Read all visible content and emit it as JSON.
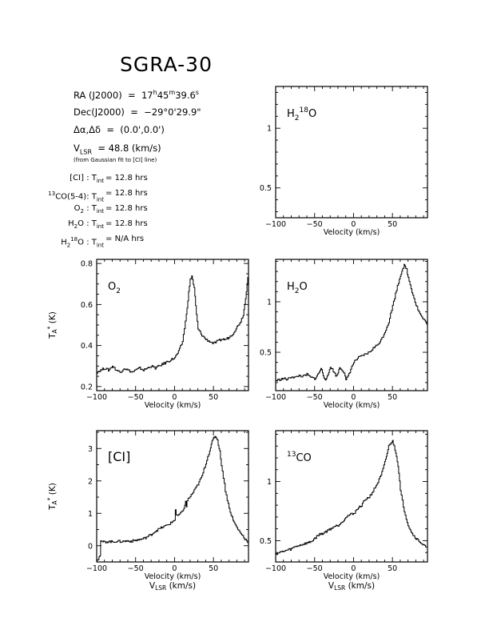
{
  "header": {
    "title": "SGRA-30",
    "ra_label": "RA (J2000)",
    "ra_h": "17",
    "ra_m": "45",
    "ra_s": "39.6",
    "dec_label": "Dec(J2000)",
    "dec_value": "−29°0'29.9\"",
    "offset_label": "Δα,Δδ",
    "offset_value": "(0.0',0.0')",
    "vlsr_label": "LSR",
    "vlsr_value": "= 48.8 (km/s)",
    "vlsr_note": "(from Gaussian fit to [CI] line)"
  },
  "integration": {
    "value_prefix": "= ",
    "rows": [
      {
        "line": "[CI]",
        "hours": "12.8 hrs"
      },
      {
        "line": "13CO(5-4)",
        "hours": "12.8 hrs"
      },
      {
        "line": "O2",
        "hours": "12.8 hrs"
      },
      {
        "line": "H2O",
        "hours": "12.8 hrs"
      },
      {
        "line": "H2 18O",
        "hours": "N/A hrs"
      }
    ]
  },
  "axis_text": {
    "velocity_label": "Velocity (km/s)",
    "vlsr_axis_label": "V",
    "vlsr_axis_sub": "LSR",
    "vlsr_axis_unit": "(km/s)",
    "ta_label": "T",
    "ta_unit": "(K)"
  },
  "chart_data": [
    {
      "type": "line",
      "panel": "H2 18O",
      "title": "H2 18O",
      "xlabel": "Velocity (km/s)",
      "xlim": [
        -100,
        95
      ],
      "ylim": [
        0.25,
        1.35
      ],
      "xticks": [
        -100,
        -50,
        0,
        50
      ],
      "yticks": [
        0.5,
        1
      ],
      "series": []
    },
    {
      "type": "line",
      "panel": "O2",
      "title": "O2",
      "xlabel": "Velocity (km/s)",
      "ylabel": "TA* (K)",
      "xlim": [
        -100,
        95
      ],
      "ylim": [
        0.18,
        0.82
      ],
      "xticks": [
        -100,
        -50,
        0,
        50
      ],
      "yticks": [
        0.2,
        0.4,
        0.6,
        0.8
      ],
      "series": [
        {
          "x": [
            -100,
            -95,
            -90,
            -85,
            -80,
            -75,
            -70,
            -65,
            -60,
            -55,
            -50,
            -45,
            -40,
            -35,
            -30,
            -25,
            -20,
            -15,
            -10,
            -5,
            0,
            5,
            10,
            15,
            18,
            20,
            22,
            25,
            28,
            30,
            35,
            40,
            45,
            50,
            55,
            60,
            65,
            70,
            75,
            80,
            85,
            88,
            90,
            93,
            95
          ],
          "y": [
            0.27,
            0.28,
            0.29,
            0.28,
            0.3,
            0.28,
            0.27,
            0.29,
            0.28,
            0.27,
            0.28,
            0.29,
            0.28,
            0.29,
            0.3,
            0.29,
            0.3,
            0.31,
            0.32,
            0.33,
            0.34,
            0.37,
            0.42,
            0.55,
            0.66,
            0.72,
            0.74,
            0.68,
            0.55,
            0.48,
            0.45,
            0.43,
            0.42,
            0.41,
            0.42,
            0.43,
            0.43,
            0.44,
            0.46,
            0.49,
            0.52,
            0.55,
            0.6,
            0.7,
            0.77
          ]
        }
      ]
    },
    {
      "type": "line",
      "panel": "H2O",
      "title": "H2O",
      "xlabel": "Velocity (km/s)",
      "xlim": [
        -100,
        95
      ],
      "ylim": [
        0.12,
        1.42
      ],
      "xticks": [
        -100,
        -50,
        0,
        50
      ],
      "yticks": [
        0.5,
        1
      ],
      "series": [
        {
          "x": [
            -100,
            -95,
            -90,
            -85,
            -80,
            -75,
            -70,
            -65,
            -60,
            -55,
            -50,
            -45,
            -42,
            -40,
            -38,
            -35,
            -32,
            -30,
            -25,
            -22,
            -20,
            -18,
            -15,
            -12,
            -10,
            -5,
            0,
            5,
            10,
            15,
            20,
            25,
            30,
            35,
            40,
            45,
            50,
            55,
            60,
            63,
            65,
            68,
            70,
            75,
            80,
            85,
            90,
            95
          ],
          "y": [
            0.22,
            0.23,
            0.24,
            0.23,
            0.26,
            0.25,
            0.27,
            0.26,
            0.28,
            0.25,
            0.24,
            0.29,
            0.34,
            0.3,
            0.25,
            0.23,
            0.3,
            0.36,
            0.3,
            0.26,
            0.3,
            0.35,
            0.33,
            0.29,
            0.22,
            0.31,
            0.4,
            0.44,
            0.46,
            0.48,
            0.5,
            0.54,
            0.57,
            0.62,
            0.7,
            0.8,
            0.96,
            1.12,
            1.26,
            1.33,
            1.36,
            1.32,
            1.24,
            1.1,
            0.97,
            0.88,
            0.82,
            0.78
          ]
        }
      ]
    },
    {
      "type": "line",
      "panel": "[CI]",
      "title": "[CI]",
      "xlabel": "Velocity (km/s)",
      "ylabel": "TA* (K)",
      "xlim": [
        -100,
        95
      ],
      "ylim": [
        -0.5,
        3.55
      ],
      "xticks": [
        -100,
        -50,
        0,
        50
      ],
      "yticks": [
        0,
        1,
        2,
        3
      ],
      "series": [
        {
          "x": [
            -100,
            -98,
            -96,
            -95,
            -90,
            -85,
            -80,
            -75,
            -70,
            -65,
            -60,
            -55,
            -50,
            -45,
            -40,
            -35,
            -30,
            -25,
            -20,
            -15,
            -10,
            -5,
            0,
            1,
            2,
            3,
            4,
            5,
            10,
            13,
            14,
            15,
            16,
            20,
            25,
            30,
            35,
            40,
            45,
            48,
            50,
            52,
            54,
            55,
            58,
            60,
            65,
            70,
            75,
            80,
            85,
            90,
            95
          ],
          "y": [
            -0.42,
            -0.4,
            -0.3,
            0.12,
            0.12,
            0.13,
            0.12,
            0.14,
            0.13,
            0.14,
            0.15,
            0.14,
            0.17,
            0.19,
            0.22,
            0.28,
            0.35,
            0.45,
            0.52,
            0.58,
            0.63,
            0.7,
            0.8,
            1.12,
            0.95,
            0.95,
            0.9,
            0.95,
            1.05,
            1.25,
            1.35,
            1.2,
            1.4,
            1.52,
            1.7,
            1.9,
            2.15,
            2.55,
            2.95,
            3.2,
            3.33,
            3.38,
            3.32,
            3.25,
            2.9,
            2.5,
            1.7,
            1.15,
            0.78,
            0.55,
            0.38,
            0.22,
            0.1
          ]
        }
      ]
    },
    {
      "type": "line",
      "panel": "13CO",
      "title": "13CO",
      "xlabel": "Velocity (km/s)",
      "xlim": [
        -100,
        95
      ],
      "ylim": [
        0.32,
        1.43
      ],
      "xticks": [
        -100,
        -50,
        0,
        50
      ],
      "yticks": [
        0.5,
        1
      ],
      "series": [
        {
          "x": [
            -100,
            -95,
            -90,
            -85,
            -80,
            -75,
            -70,
            -65,
            -60,
            -55,
            -50,
            -45,
            -40,
            -35,
            -30,
            -25,
            -20,
            -15,
            -10,
            -5,
            0,
            5,
            10,
            15,
            20,
            25,
            30,
            35,
            40,
            43,
            45,
            48,
            50,
            52,
            55,
            58,
            60,
            65,
            70,
            75,
            80,
            85,
            90,
            95
          ],
          "y": [
            0.39,
            0.4,
            0.41,
            0.42,
            0.43,
            0.45,
            0.46,
            0.47,
            0.48,
            0.49,
            0.52,
            0.55,
            0.56,
            0.58,
            0.6,
            0.62,
            0.63,
            0.66,
            0.7,
            0.72,
            0.73,
            0.77,
            0.8,
            0.85,
            0.87,
            0.92,
            0.98,
            1.05,
            1.16,
            1.24,
            1.3,
            1.33,
            1.34,
            1.3,
            1.22,
            1.08,
            0.92,
            0.75,
            0.63,
            0.56,
            0.52,
            0.49,
            0.46,
            0.43
          ]
        }
      ]
    }
  ]
}
